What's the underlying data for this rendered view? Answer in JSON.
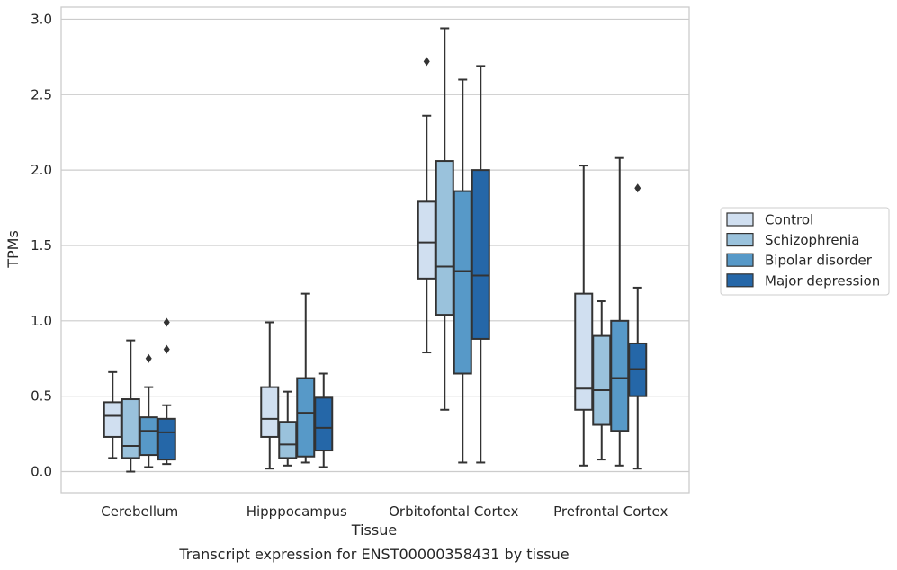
{
  "caption": "Transcript expression for ENST00000358431 by tissue",
  "chart_data": {
    "type": "box",
    "xlabel": "Tissue",
    "ylabel": "TPMs",
    "ylim": [
      -0.14,
      3.08
    ],
    "yticks": [
      "0.0",
      "0.5",
      "1.0",
      "1.5",
      "2.0",
      "2.5",
      "3.0"
    ],
    "grid": "horizontal",
    "legend_position": "right",
    "categories": [
      "Cerebellum",
      "Hipppocampus",
      "Orbitofontal Cortex",
      "Prefrontal Cortex"
    ],
    "series": [
      {
        "name": "Control",
        "color": "#d0dff0",
        "boxes": [
          {
            "whisker_low": 0.09,
            "q1": 0.23,
            "median": 0.37,
            "q3": 0.46,
            "whisker_high": 0.66,
            "outliers": []
          },
          {
            "whisker_low": 0.02,
            "q1": 0.23,
            "median": 0.35,
            "q3": 0.56,
            "whisker_high": 0.99,
            "outliers": []
          },
          {
            "whisker_low": 0.79,
            "q1": 1.28,
            "median": 1.52,
            "q3": 1.79,
            "whisker_high": 2.36,
            "outliers": [
              2.72
            ]
          },
          {
            "whisker_low": 0.04,
            "q1": 0.41,
            "median": 0.55,
            "q3": 1.18,
            "whisker_high": 2.03,
            "outliers": []
          }
        ]
      },
      {
        "name": "Schizophrenia",
        "color": "#9ac2dc",
        "boxes": [
          {
            "whisker_low": 0.0,
            "q1": 0.09,
            "median": 0.17,
            "q3": 0.48,
            "whisker_high": 0.87,
            "outliers": []
          },
          {
            "whisker_low": 0.04,
            "q1": 0.09,
            "median": 0.18,
            "q3": 0.33,
            "whisker_high": 0.53,
            "outliers": []
          },
          {
            "whisker_low": 0.41,
            "q1": 1.04,
            "median": 1.36,
            "q3": 2.06,
            "whisker_high": 2.94,
            "outliers": []
          },
          {
            "whisker_low": 0.08,
            "q1": 0.31,
            "median": 0.54,
            "q3": 0.9,
            "whisker_high": 1.13,
            "outliers": []
          }
        ]
      },
      {
        "name": "Bipolar disorder",
        "color": "#5799c8",
        "boxes": [
          {
            "whisker_low": 0.03,
            "q1": 0.11,
            "median": 0.27,
            "q3": 0.36,
            "whisker_high": 0.56,
            "outliers": [
              0.75
            ]
          },
          {
            "whisker_low": 0.06,
            "q1": 0.1,
            "median": 0.39,
            "q3": 0.62,
            "whisker_high": 1.18,
            "outliers": []
          },
          {
            "whisker_low": 0.06,
            "q1": 0.65,
            "median": 1.33,
            "q3": 1.86,
            "whisker_high": 2.6,
            "outliers": []
          },
          {
            "whisker_low": 0.04,
            "q1": 0.27,
            "median": 0.62,
            "q3": 1.0,
            "whisker_high": 2.08,
            "outliers": []
          }
        ]
      },
      {
        "name": "Major depression",
        "color": "#2567a8",
        "boxes": [
          {
            "whisker_low": 0.05,
            "q1": 0.08,
            "median": 0.26,
            "q3": 0.35,
            "whisker_high": 0.44,
            "outliers": [
              0.81,
              0.99
            ]
          },
          {
            "whisker_low": 0.03,
            "q1": 0.14,
            "median": 0.29,
            "q3": 0.49,
            "whisker_high": 0.65,
            "outliers": []
          },
          {
            "whisker_low": 0.06,
            "q1": 0.88,
            "median": 1.3,
            "q3": 2.0,
            "whisker_high": 2.69,
            "outliers": []
          },
          {
            "whisker_low": 0.02,
            "q1": 0.5,
            "median": 0.68,
            "q3": 0.85,
            "whisker_high": 1.22,
            "outliers": [
              1.88
            ]
          }
        ]
      }
    ]
  }
}
